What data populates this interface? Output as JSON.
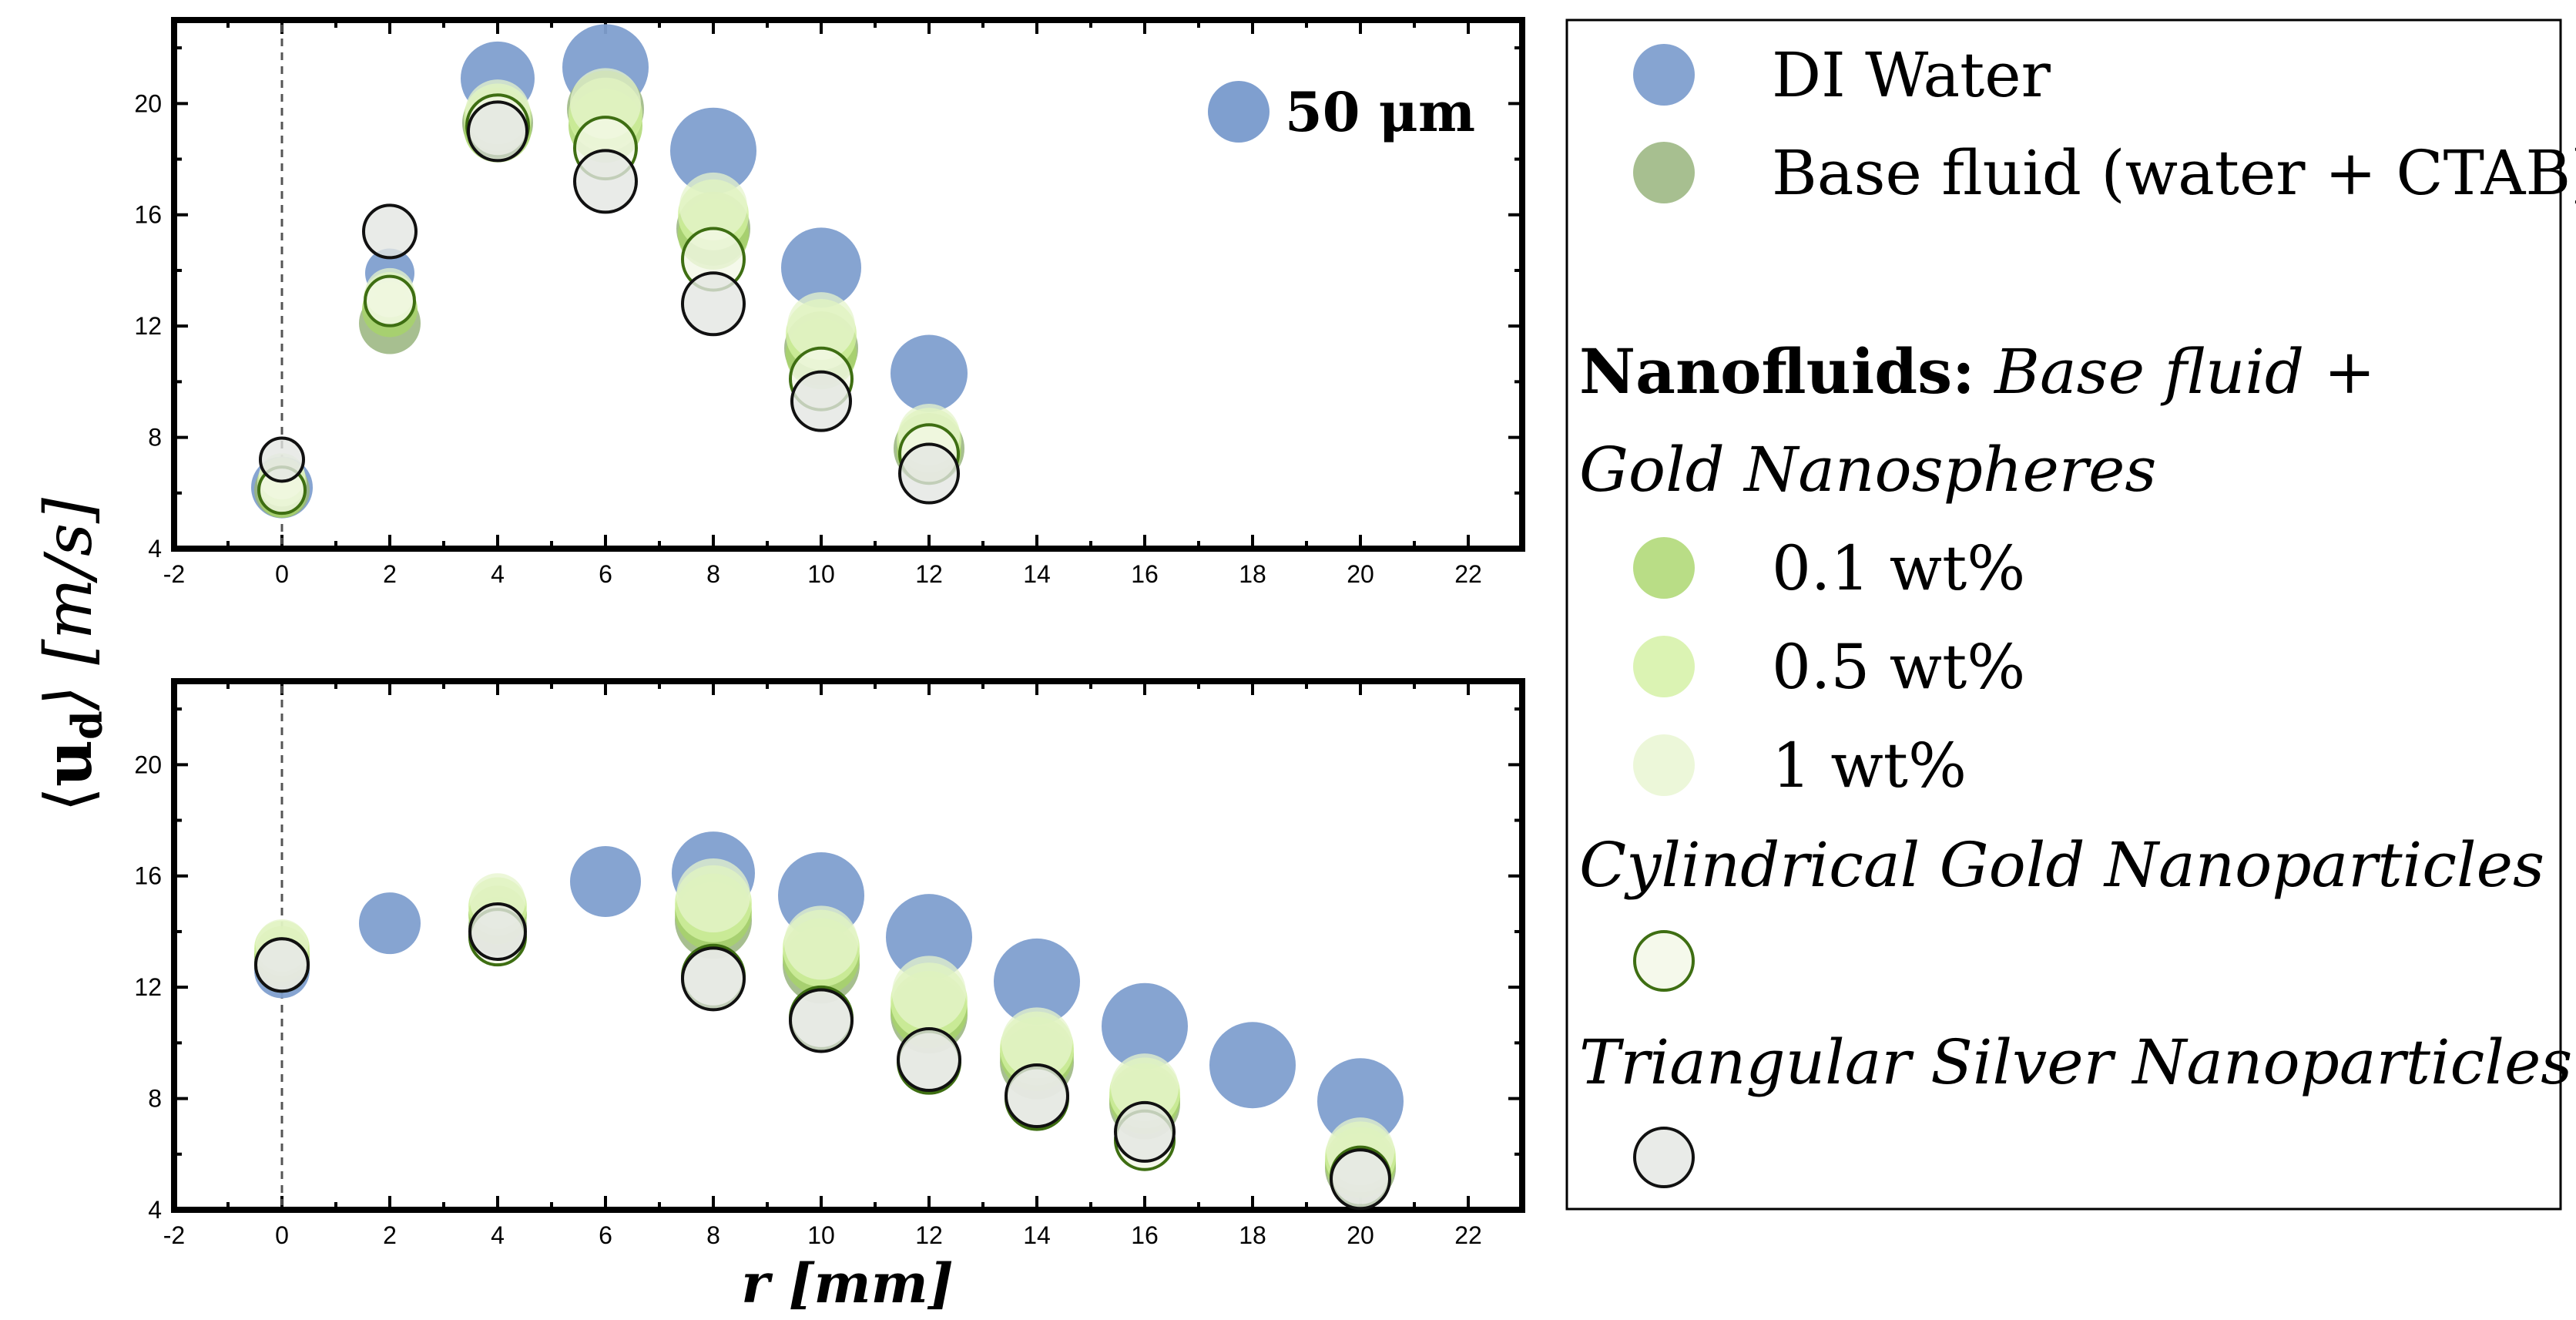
{
  "colors": {
    "di_water": "#7f9fcf",
    "base_fluid": "#98b47c",
    "np_01": "#a7d468",
    "np_05": "#d2f0a0",
    "np_1": "#e6f4cc",
    "cyl_fill": "#f2f7e6",
    "cyl_stroke": "#3e6e12",
    "tri_fill": "#e4e6e2",
    "tri_stroke": "#111111"
  },
  "labels": {
    "ylabel_prefix": "⟨",
    "ylabel_bold": "u",
    "ylabel_sub": "d",
    "ylabel_suffix": "⟩ [m/s]",
    "xlabel": "r [mm]",
    "size_ref": "50 μm"
  },
  "legend": {
    "di_water": "DI Water",
    "base_fluid": "Base fluid (water + CTAB)",
    "nanofluids_bold": "Nanofluids:",
    "nanofluids_italic": " Base fluid +",
    "gold_nanospheres": "Gold Nanospheres",
    "wt_01": "0.1 wt%",
    "wt_05": "0.5 wt%",
    "wt_1": "1 wt%",
    "cylindrical": "Cylindrical Gold Nanoparticles",
    "triangular": "Triangular Silver Nanoparticles"
  },
  "chart_data": [
    {
      "type": "scatter",
      "panel": "top",
      "xlabel": "r [mm]",
      "ylabel": "⟨ud⟩ [m/s]",
      "xlim": [
        -2,
        23
      ],
      "ylim": [
        4,
        23
      ],
      "xticks": [
        -2,
        0,
        2,
        4,
        6,
        8,
        10,
        12,
        14,
        16,
        18,
        20,
        22
      ],
      "yticks": [
        4,
        8,
        12,
        16,
        20
      ],
      "size_reference": "50 μm",
      "series": [
        {
          "name": "DI Water",
          "key": "di_water",
          "points": [
            [
              0,
              6.2,
              40
            ],
            [
              2,
              13.9,
              32
            ],
            [
              4,
              20.9,
              48
            ],
            [
              6,
              21.3,
              56
            ],
            [
              8,
              18.3,
              56
            ],
            [
              10,
              14.1,
              52
            ],
            [
              12,
              10.3,
              50
            ]
          ]
        },
        {
          "name": "Base fluid (water + CTAB)",
          "key": "base_fluid",
          "points": [
            [
              0,
              6.1,
              36
            ],
            [
              2,
              12.1,
              40
            ],
            [
              4,
              19.3,
              46
            ],
            [
              6,
              19.8,
              50
            ],
            [
              8,
              15.5,
              48
            ],
            [
              10,
              11.2,
              48
            ],
            [
              12,
              7.6,
              46
            ]
          ]
        },
        {
          "name": "0.1 wt%",
          "key": "np_01",
          "points": [
            [
              0,
              6.0,
              32
            ],
            [
              2,
              12.6,
              36
            ],
            [
              4,
              19.1,
              44
            ],
            [
              6,
              19.2,
              48
            ],
            [
              8,
              15.3,
              46
            ],
            [
              10,
              11.0,
              46
            ],
            [
              12,
              7.5,
              42
            ]
          ]
        },
        {
          "name": "0.5 wt%",
          "key": "np_05",
          "points": [
            [
              0,
              6.4,
              32
            ],
            [
              2,
              13.0,
              34
            ],
            [
              4,
              19.5,
              44
            ],
            [
              6,
              19.6,
              48
            ],
            [
              8,
              16.0,
              46
            ],
            [
              10,
              11.7,
              46
            ],
            [
              12,
              7.9,
              42
            ]
          ]
        },
        {
          "name": "1 wt%",
          "key": "np_1",
          "points": [
            [
              0,
              6.6,
              30
            ],
            [
              2,
              13.2,
              32
            ],
            [
              4,
              19.7,
              42
            ],
            [
              6,
              20.0,
              46
            ],
            [
              8,
              16.3,
              44
            ],
            [
              10,
              12.0,
              44
            ],
            [
              12,
              8.1,
              40
            ]
          ]
        },
        {
          "name": "Cylindrical Gold Nanoparticles",
          "key": "cylindrical",
          "points": [
            [
              0,
              6.1,
              30
            ],
            [
              2,
              12.9,
              32
            ],
            [
              4,
              19.2,
              40
            ],
            [
              6,
              18.4,
              40
            ],
            [
              8,
              14.4,
              40
            ],
            [
              10,
              10.1,
              40
            ],
            [
              12,
              7.4,
              38
            ]
          ]
        },
        {
          "name": "Triangular Silver Nanoparticles",
          "key": "triangular",
          "points": [
            [
              0,
              7.2,
              28
            ],
            [
              2,
              15.4,
              34
            ],
            [
              4,
              19.0,
              38
            ],
            [
              6,
              17.2,
              40
            ],
            [
              8,
              12.8,
              40
            ],
            [
              10,
              9.3,
              38
            ],
            [
              12,
              6.7,
              38
            ]
          ]
        }
      ]
    },
    {
      "type": "scatter",
      "panel": "bottom",
      "xlabel": "r [mm]",
      "ylabel": "⟨ud⟩ [m/s]",
      "xlim": [
        -2,
        23
      ],
      "ylim": [
        4,
        23
      ],
      "xticks": [
        -2,
        0,
        2,
        4,
        6,
        8,
        10,
        12,
        14,
        16,
        18,
        20,
        22
      ],
      "yticks": [
        4,
        8,
        12,
        16,
        20
      ],
      "series": [
        {
          "name": "DI Water",
          "key": "di_water",
          "points": [
            [
              0,
              12.6,
              36
            ],
            [
              2,
              14.3,
              40
            ],
            [
              6,
              15.8,
              46
            ],
            [
              8,
              16.1,
              54
            ],
            [
              10,
              15.3,
              56
            ],
            [
              12,
              13.8,
              56
            ],
            [
              14,
              12.2,
              56
            ],
            [
              16,
              10.6,
              56
            ],
            [
              18,
              9.2,
              56
            ],
            [
              20,
              7.9,
              56
            ]
          ]
        },
        {
          "name": "Base fluid (water + CTAB)",
          "key": "base_fluid",
          "points": [
            [
              0,
              13.0,
              36
            ],
            [
              4,
              14.2,
              38
            ],
            [
              8,
              14.4,
              50
            ],
            [
              10,
              12.8,
              50
            ],
            [
              12,
              11.0,
              50
            ],
            [
              14,
              9.3,
              48
            ],
            [
              16,
              7.8,
              46
            ],
            [
              20,
              5.5,
              46
            ]
          ]
        },
        {
          "name": "0.1 wt%",
          "key": "np_01",
          "points": [
            [
              0,
              13.2,
              36
            ],
            [
              4,
              14.6,
              38
            ],
            [
              8,
              14.7,
              50
            ],
            [
              10,
              13.1,
              50
            ],
            [
              12,
              11.2,
              50
            ],
            [
              14,
              9.6,
              48
            ],
            [
              16,
              8.0,
              46
            ],
            [
              20,
              5.7,
              46
            ]
          ]
        },
        {
          "name": "0.5 wt%",
          "key": "np_05",
          "points": [
            [
              0,
              13.4,
              36
            ],
            [
              4,
              14.9,
              38
            ],
            [
              8,
              15.0,
              50
            ],
            [
              10,
              13.4,
              50
            ],
            [
              12,
              11.5,
              50
            ],
            [
              14,
              9.8,
              48
            ],
            [
              16,
              8.2,
              46
            ],
            [
              20,
              5.9,
              46
            ]
          ]
        },
        {
          "name": "1 wt%",
          "key": "np_1",
          "points": [
            [
              0,
              13.5,
              34
            ],
            [
              4,
              15.1,
              36
            ],
            [
              8,
              15.3,
              48
            ],
            [
              10,
              13.6,
              48
            ],
            [
              12,
              11.8,
              48
            ],
            [
              14,
              10.0,
              46
            ],
            [
              16,
              8.4,
              44
            ],
            [
              20,
              6.1,
              44
            ]
          ]
        },
        {
          "name": "Cylindrical Gold Nanoparticles",
          "key": "cylindrical",
          "points": [
            [
              0,
              12.8,
              34
            ],
            [
              4,
              13.8,
              36
            ],
            [
              8,
              12.4,
              40
            ],
            [
              10,
              10.9,
              40
            ],
            [
              12,
              9.3,
              40
            ],
            [
              14,
              8.0,
              40
            ],
            [
              16,
              6.5,
              38
            ],
            [
              20,
              5.2,
              38
            ]
          ]
        },
        {
          "name": "Triangular Silver Nanoparticles",
          "key": "triangular",
          "points": [
            [
              0,
              12.8,
              34
            ],
            [
              4,
              14.0,
              36
            ],
            [
              8,
              12.3,
              40
            ],
            [
              10,
              10.8,
              40
            ],
            [
              12,
              9.4,
              40
            ],
            [
              14,
              8.1,
              40
            ],
            [
              16,
              6.8,
              38
            ],
            [
              20,
              5.1,
              38
            ]
          ]
        }
      ]
    }
  ]
}
